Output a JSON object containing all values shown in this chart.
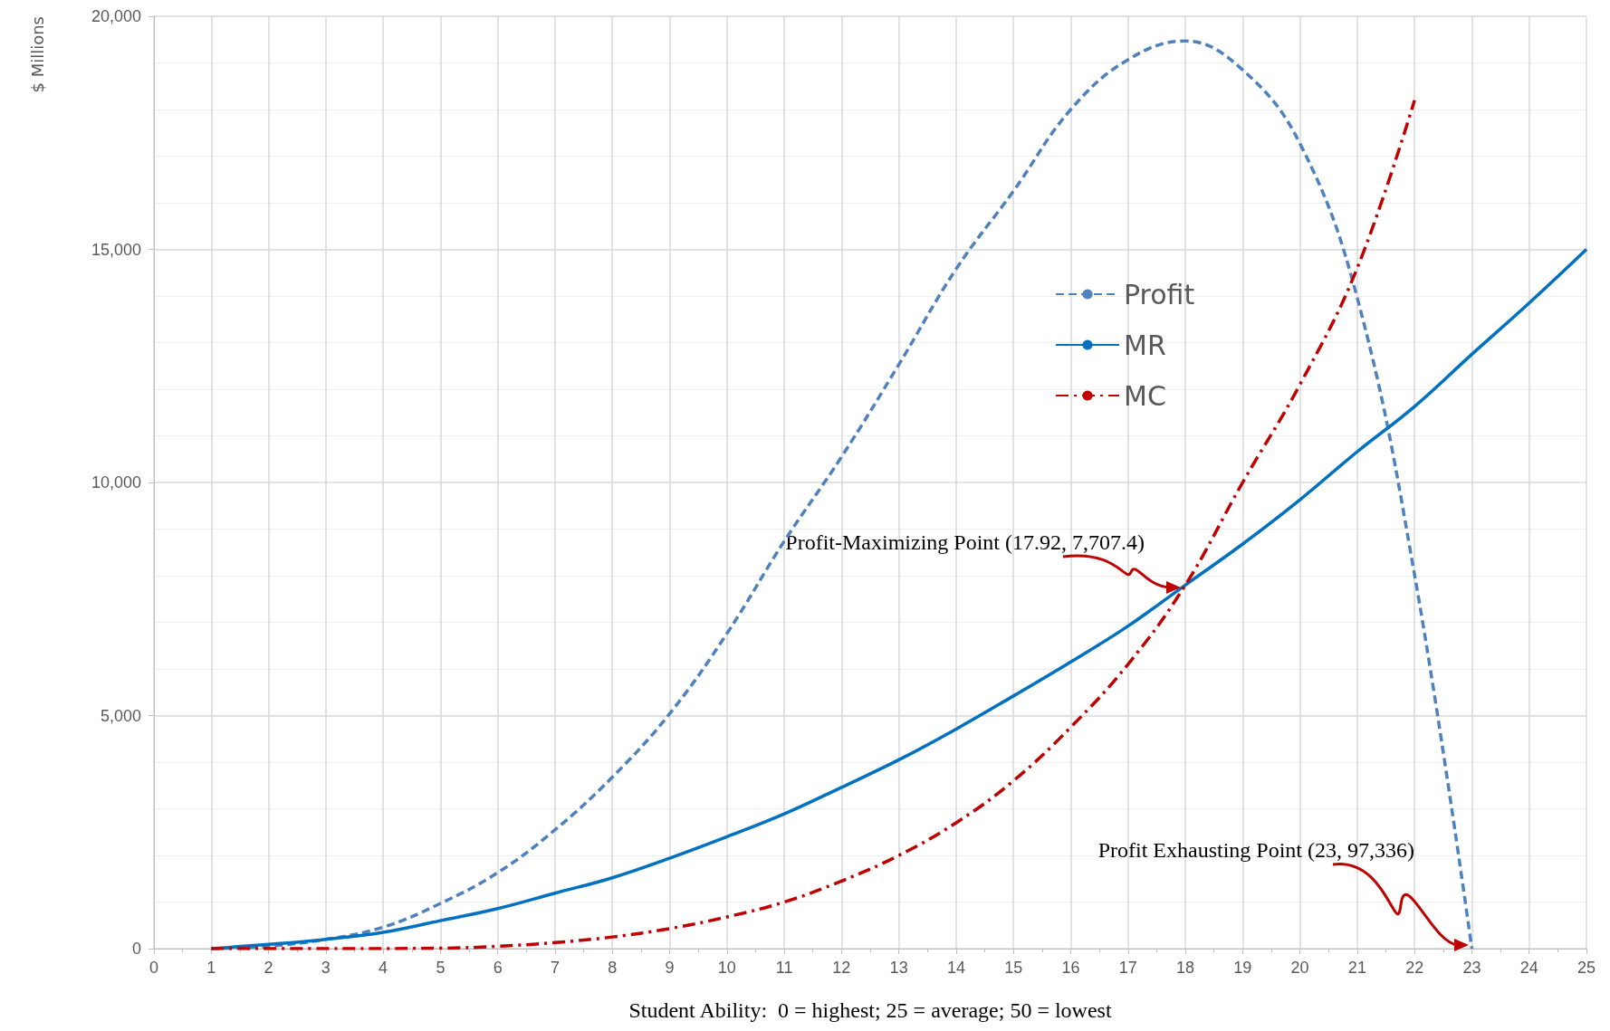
{
  "chart_data": {
    "type": "line",
    "xlabel": "Student Ability:  0 = highest; 25 = average; 50 = lowest",
    "ylabel": "$ Millions",
    "xlim": [
      0,
      25
    ],
    "xticks": [
      0,
      1,
      2,
      3,
      4,
      5,
      6,
      7,
      8,
      9,
      10,
      11,
      12,
      13,
      14,
      15,
      16,
      17,
      18,
      19,
      20,
      21,
      22,
      23,
      24,
      25
    ],
    "ylim": [
      0,
      20000
    ],
    "yticks": [
      {
        "value": 0,
        "label": "0"
      },
      {
        "value": 5000,
        "label": "5,000"
      },
      {
        "value": 10000,
        "label": "10,000"
      },
      {
        "value": 15000,
        "label": "15,000"
      },
      {
        "value": 20000,
        "label": "20,000"
      }
    ],
    "grid": true,
    "legend": "right",
    "marker": "none",
    "series": [
      {
        "name": "Profit",
        "color": "#4f81bd",
        "line_style": "dashed",
        "x": [
          1,
          2,
          3,
          4,
          5,
          6,
          7,
          8,
          9,
          10,
          11,
          12,
          13,
          14,
          15,
          16,
          17,
          18,
          19,
          20,
          21,
          22,
          23
        ],
        "values": [
          0,
          50,
          200,
          460,
          970,
          1630,
          2550,
          3680,
          5040,
          6760,
          8740,
          10550,
          12530,
          14580,
          16250,
          18000,
          19070,
          19470,
          18850,
          17270,
          13960,
          8020,
          0
        ]
      },
      {
        "name": "MR",
        "color": "#0070c0",
        "line_style": "solid",
        "x": [
          1,
          2,
          3,
          4,
          5,
          6,
          7,
          8,
          9,
          10,
          11,
          12,
          13,
          14,
          15,
          16,
          17,
          18,
          19,
          20,
          21,
          22,
          23,
          24,
          25
        ],
        "values": [
          0,
          90,
          200,
          350,
          600,
          860,
          1190,
          1520,
          1940,
          2400,
          2890,
          3460,
          4050,
          4710,
          5420,
          6150,
          6920,
          7800,
          8680,
          9630,
          10660,
          11630,
          12750,
          13850,
          15000
        ]
      },
      {
        "name": "MC",
        "color": "#c00000",
        "line_style": "dashdot",
        "x": [
          1,
          3,
          5,
          6,
          7,
          8,
          9,
          10,
          11,
          12,
          13,
          14,
          15,
          16,
          17,
          18,
          19,
          20,
          21,
          22
        ],
        "values": [
          0,
          0,
          10,
          50,
          130,
          250,
          430,
          680,
          1000,
          1450,
          2000,
          2700,
          3600,
          4750,
          6100,
          7800,
          10000,
          12100,
          14600,
          18200
        ]
      }
    ],
    "annotations": [
      {
        "text": "Profit-Maximizing Point (17.92, 7,707.4)",
        "x": 17.92,
        "y": 7707.4
      },
      "Profit Exhausting Point (23, 97,336)"
    ]
  }
}
